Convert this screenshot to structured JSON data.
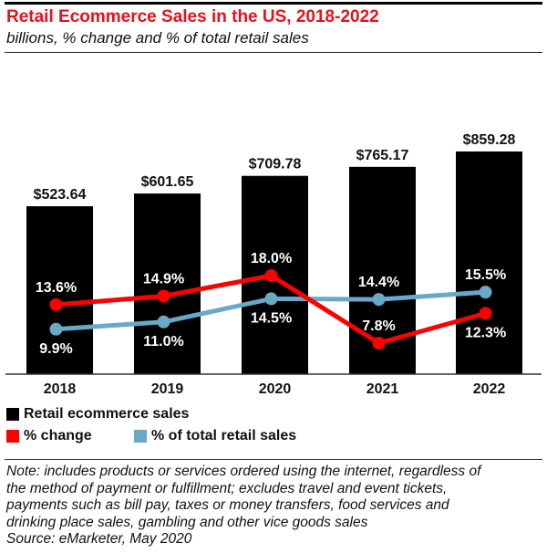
{
  "header": {
    "title": "Retail Ecommerce Sales in the US, 2018-2022",
    "subtitle": "billions, % change and % of total retail sales"
  },
  "chart_data": {
    "type": "bar",
    "title": "Retail Ecommerce Sales in the US, 2018-2022",
    "subtitle": "billions, % change and % of total retail sales",
    "xlabel": "",
    "ylabel": "",
    "grid": false,
    "legend_position": "bottom-left",
    "categories": [
      "2018",
      "2019",
      "2020",
      "2021",
      "2022"
    ],
    "series": [
      {
        "name": "Retail ecommerce sales",
        "type": "bar",
        "color": "#000000",
        "values": [
          523.64,
          601.65,
          709.78,
          765.17,
          859.28
        ],
        "labels": [
          "$523.64",
          "$601.65",
          "$709.78",
          "$765.17",
          "$859.28"
        ]
      },
      {
        "name": "% change",
        "type": "line",
        "color": "#ff0000",
        "values": [
          13.6,
          14.9,
          18.0,
          7.8,
          12.3
        ],
        "labels": [
          "13.6%",
          "14.9%",
          "18.0%",
          "7.8%",
          "12.3%"
        ]
      },
      {
        "name": "% of total retail sales",
        "type": "line",
        "color": "#6aa8c8",
        "values": [
          9.9,
          11.0,
          14.5,
          14.4,
          15.5
        ],
        "labels": [
          "9.9%",
          "11.0%",
          "14.5%",
          "14.4%",
          "15.5%"
        ]
      }
    ]
  },
  "legend": {
    "items": [
      {
        "label": "Retail ecommerce sales",
        "color": "#000000"
      },
      {
        "label": "% change",
        "color": "#ff0000"
      },
      {
        "label": "% of total retail sales",
        "color": "#6aa8c8"
      }
    ]
  },
  "footer": {
    "note_lines": [
      "Note: includes products or services ordered using the internet, regardless of",
      "the method of payment or fulfillment; excludes travel and event tickets,",
      "payments such as bill pay, taxes or money transfers, food services and",
      "drinking place sales, gambling and other vice goods sales"
    ],
    "source": "Source: eMarketer, May 2020"
  }
}
